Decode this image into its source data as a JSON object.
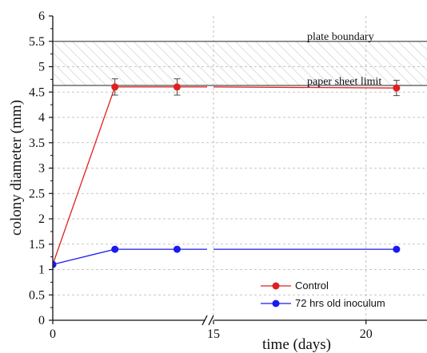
{
  "chart_data": {
    "type": "line",
    "title": "",
    "xlabel": "time (days)",
    "ylabel": "colony diameter (mm)",
    "ylim": [
      0,
      6
    ],
    "y_ticks": [
      "0",
      "0.5",
      "1",
      "1.5",
      "2",
      "2.5",
      "3",
      "3.5",
      "4",
      "4.5",
      "5",
      "5.5",
      "6"
    ],
    "x_ticks": [
      "0",
      "15",
      "20"
    ],
    "x_axis_break": true,
    "grid": true,
    "legend_position": "bottom-right",
    "reference_lines": [
      {
        "label": "plate boundary",
        "y": 5.5
      },
      {
        "label": "paper sheet limit",
        "y": 4.63
      }
    ],
    "series": [
      {
        "name": "Control",
        "color": "#e02020",
        "x": [
          0,
          3,
          6,
          21
        ],
        "y": [
          1.1,
          4.6,
          4.6,
          4.58
        ],
        "error": [
          0,
          0.16,
          0.16,
          0.15
        ]
      },
      {
        "name": "72 hrs old inoculum",
        "color": "#1a1aee",
        "x": [
          0,
          3,
          6,
          21
        ],
        "y": [
          1.1,
          1.4,
          1.4,
          1.4
        ],
        "error": [
          0,
          0,
          0,
          0
        ]
      }
    ]
  }
}
